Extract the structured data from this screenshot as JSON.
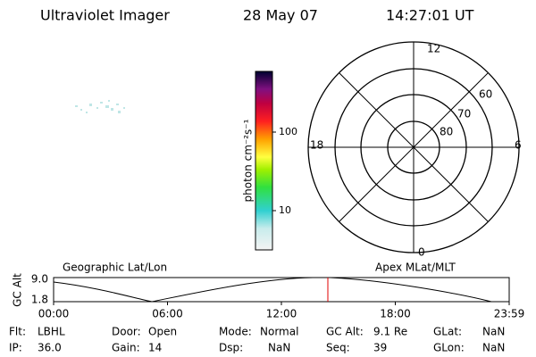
{
  "header": {
    "instrument": "Ultraviolet Imager",
    "date": "28 May 07",
    "time": "14:27:01 UT"
  },
  "colorbar": {
    "unit": "photon cm⁻²s⁻¹",
    "tick_labels": [
      "100",
      "10"
    ]
  },
  "polar": {
    "mlt_labels": {
      "top": "12",
      "bottom": "0",
      "left": "18",
      "right": "6"
    },
    "lat_labels": [
      "60",
      "70",
      "80"
    ]
  },
  "strip": {
    "left_title": "Geographic Lat/Lon",
    "right_title": "Apex MLat/MLT",
    "y_label": "GC Alt",
    "y_tick_labels": [
      "9.0",
      "1.8"
    ],
    "x_tick_labels": [
      "00:00",
      "06:00",
      "12:00",
      "18:00",
      "23:59"
    ]
  },
  "info": {
    "rows": [
      [
        {
          "label": "Flt:",
          "value": "LBHL"
        },
        {
          "label": "Door:",
          "value": "Open"
        },
        {
          "label": "Mode:",
          "value": "Normal"
        },
        {
          "label": "GC Alt:",
          "value": "9.1 Re"
        },
        {
          "label": "GLat:",
          "value": "NaN"
        }
      ],
      [
        {
          "label": "IP:",
          "value": "36.0"
        },
        {
          "label": "Gain:",
          "value": "14"
        },
        {
          "label": "Dsp:",
          "value": "NaN"
        },
        {
          "label": "Seq:",
          "value": "39"
        },
        {
          "label": "GLon:",
          "value": "NaN"
        }
      ]
    ]
  }
}
